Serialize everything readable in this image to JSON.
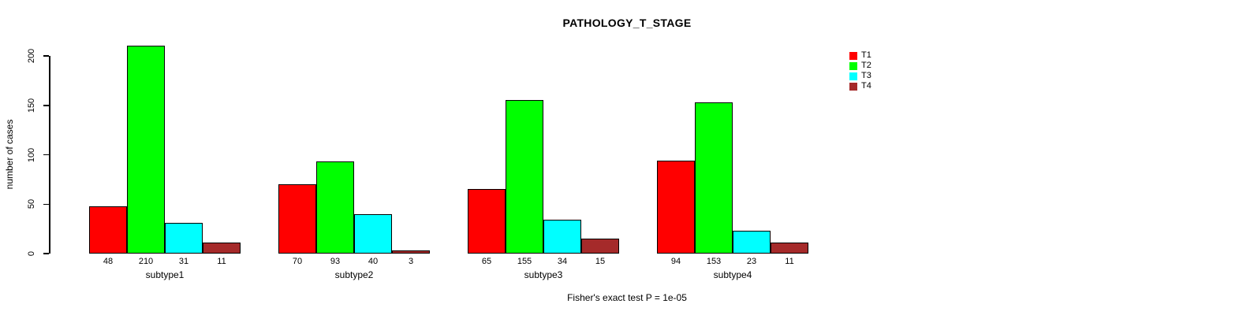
{
  "chart_data": {
    "type": "bar",
    "title": "PATHOLOGY_T_STAGE",
    "xlabel": "",
    "ylabel": "number of cases",
    "ylim": [
      0,
      210
    ],
    "yticks": [
      0,
      50,
      100,
      150,
      200
    ],
    "categories": [
      "subtype1",
      "subtype2",
      "subtype3",
      "subtype4"
    ],
    "series": [
      {
        "name": "T1",
        "color": "#ff0000",
        "values": [
          48,
          70,
          65,
          94
        ]
      },
      {
        "name": "T2",
        "color": "#00ff00",
        "values": [
          210,
          93,
          155,
          153
        ]
      },
      {
        "name": "T3",
        "color": "#00ffff",
        "values": [
          31,
          40,
          34,
          23
        ]
      },
      {
        "name": "T4",
        "color": "#a52a2a",
        "values": [
          11,
          3,
          15,
          11
        ]
      }
    ],
    "bar_value_labels": true,
    "legend": {
      "position": "top-right",
      "entries": [
        "T1",
        "T2",
        "T3",
        "T4"
      ]
    },
    "annotation": "Fisher's exact test P = 1e-05",
    "grid": false
  }
}
